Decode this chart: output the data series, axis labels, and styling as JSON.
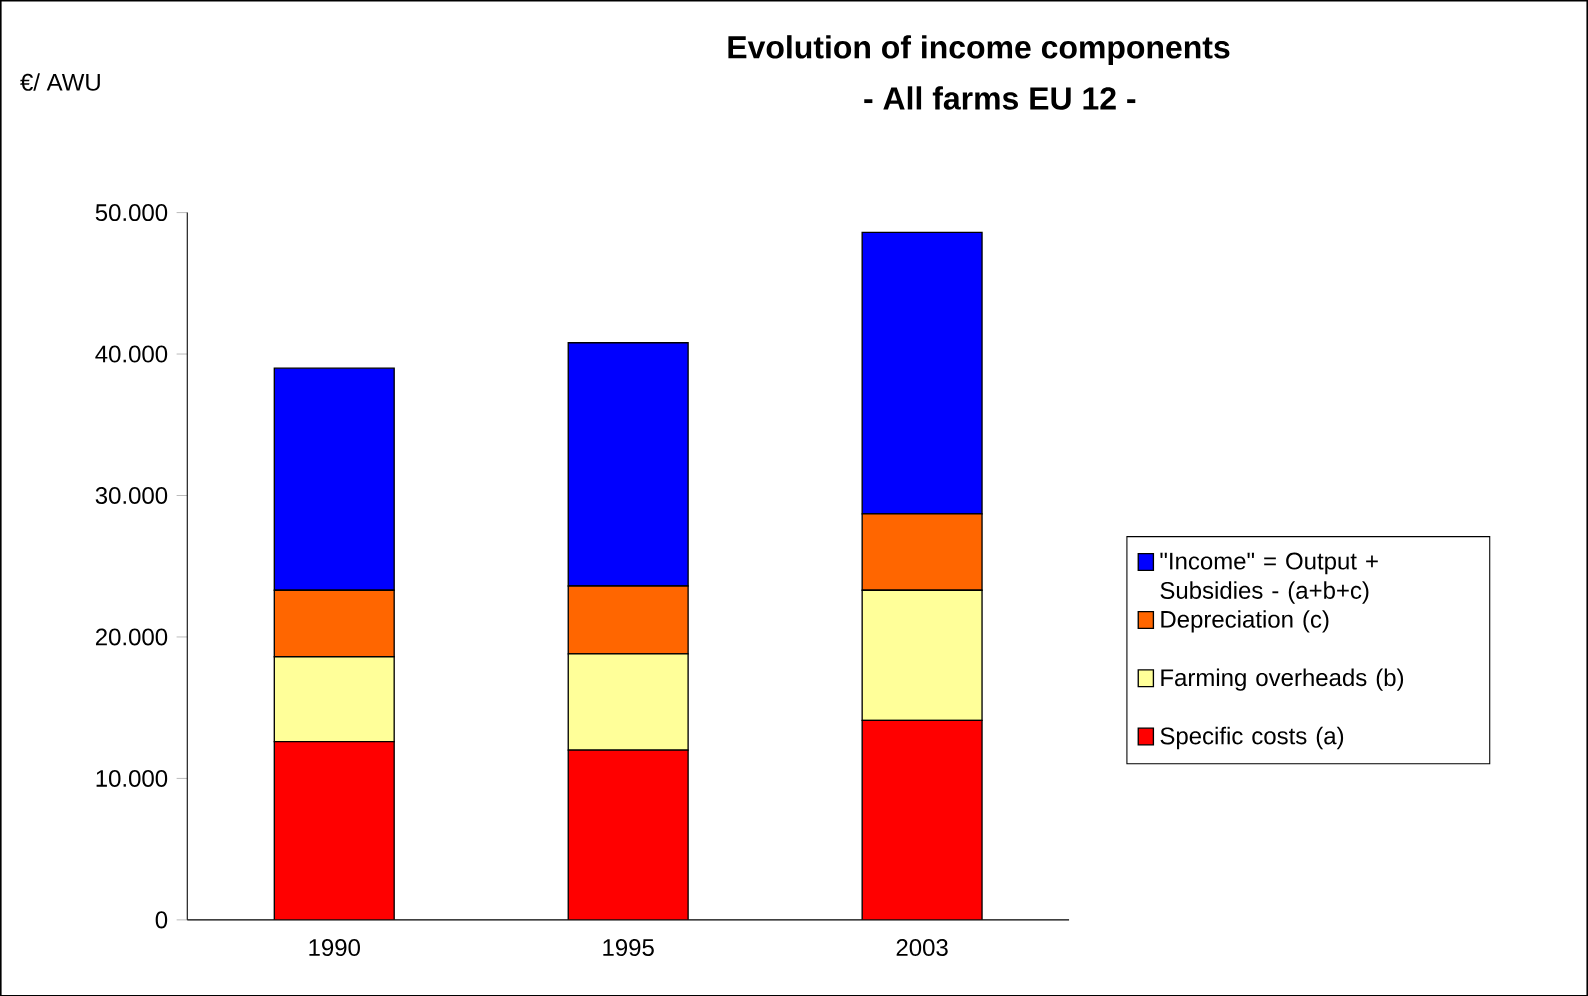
{
  "chart_data": {
    "type": "bar",
    "stacked": true,
    "title": "Evolution of income components",
    "subtitle": "- All farms EU 12 -",
    "ylabel": "€/ AWU",
    "categories": [
      "1990",
      "1995",
      "2003"
    ],
    "series": [
      {
        "name": "Specific costs (a)",
        "color": "#ff0000",
        "values": [
          12600,
          12000,
          14100
        ]
      },
      {
        "name": "Farming overheads (b)",
        "color": "#ffff99",
        "values": [
          6000,
          6800,
          9200
        ]
      },
      {
        "name": "Depreciation (c)",
        "color": "#ff6600",
        "values": [
          4700,
          4800,
          5400
        ]
      },
      {
        "name": "\"Income\" = Output + Subsidies - (a+b+c)",
        "color": "#0000ff",
        "values": [
          15700,
          17200,
          19900
        ]
      }
    ],
    "ylim": [
      0,
      50000
    ],
    "yticks": [
      {
        "value": 0,
        "label": "0"
      },
      {
        "value": 10000,
        "label": "10.000"
      },
      {
        "value": 20000,
        "label": "20.000"
      },
      {
        "value": 30000,
        "label": "30.000"
      },
      {
        "value": 40000,
        "label": "40.000"
      },
      {
        "value": 50000,
        "label": "50.000"
      }
    ],
    "grid": false,
    "legend": "right"
  }
}
